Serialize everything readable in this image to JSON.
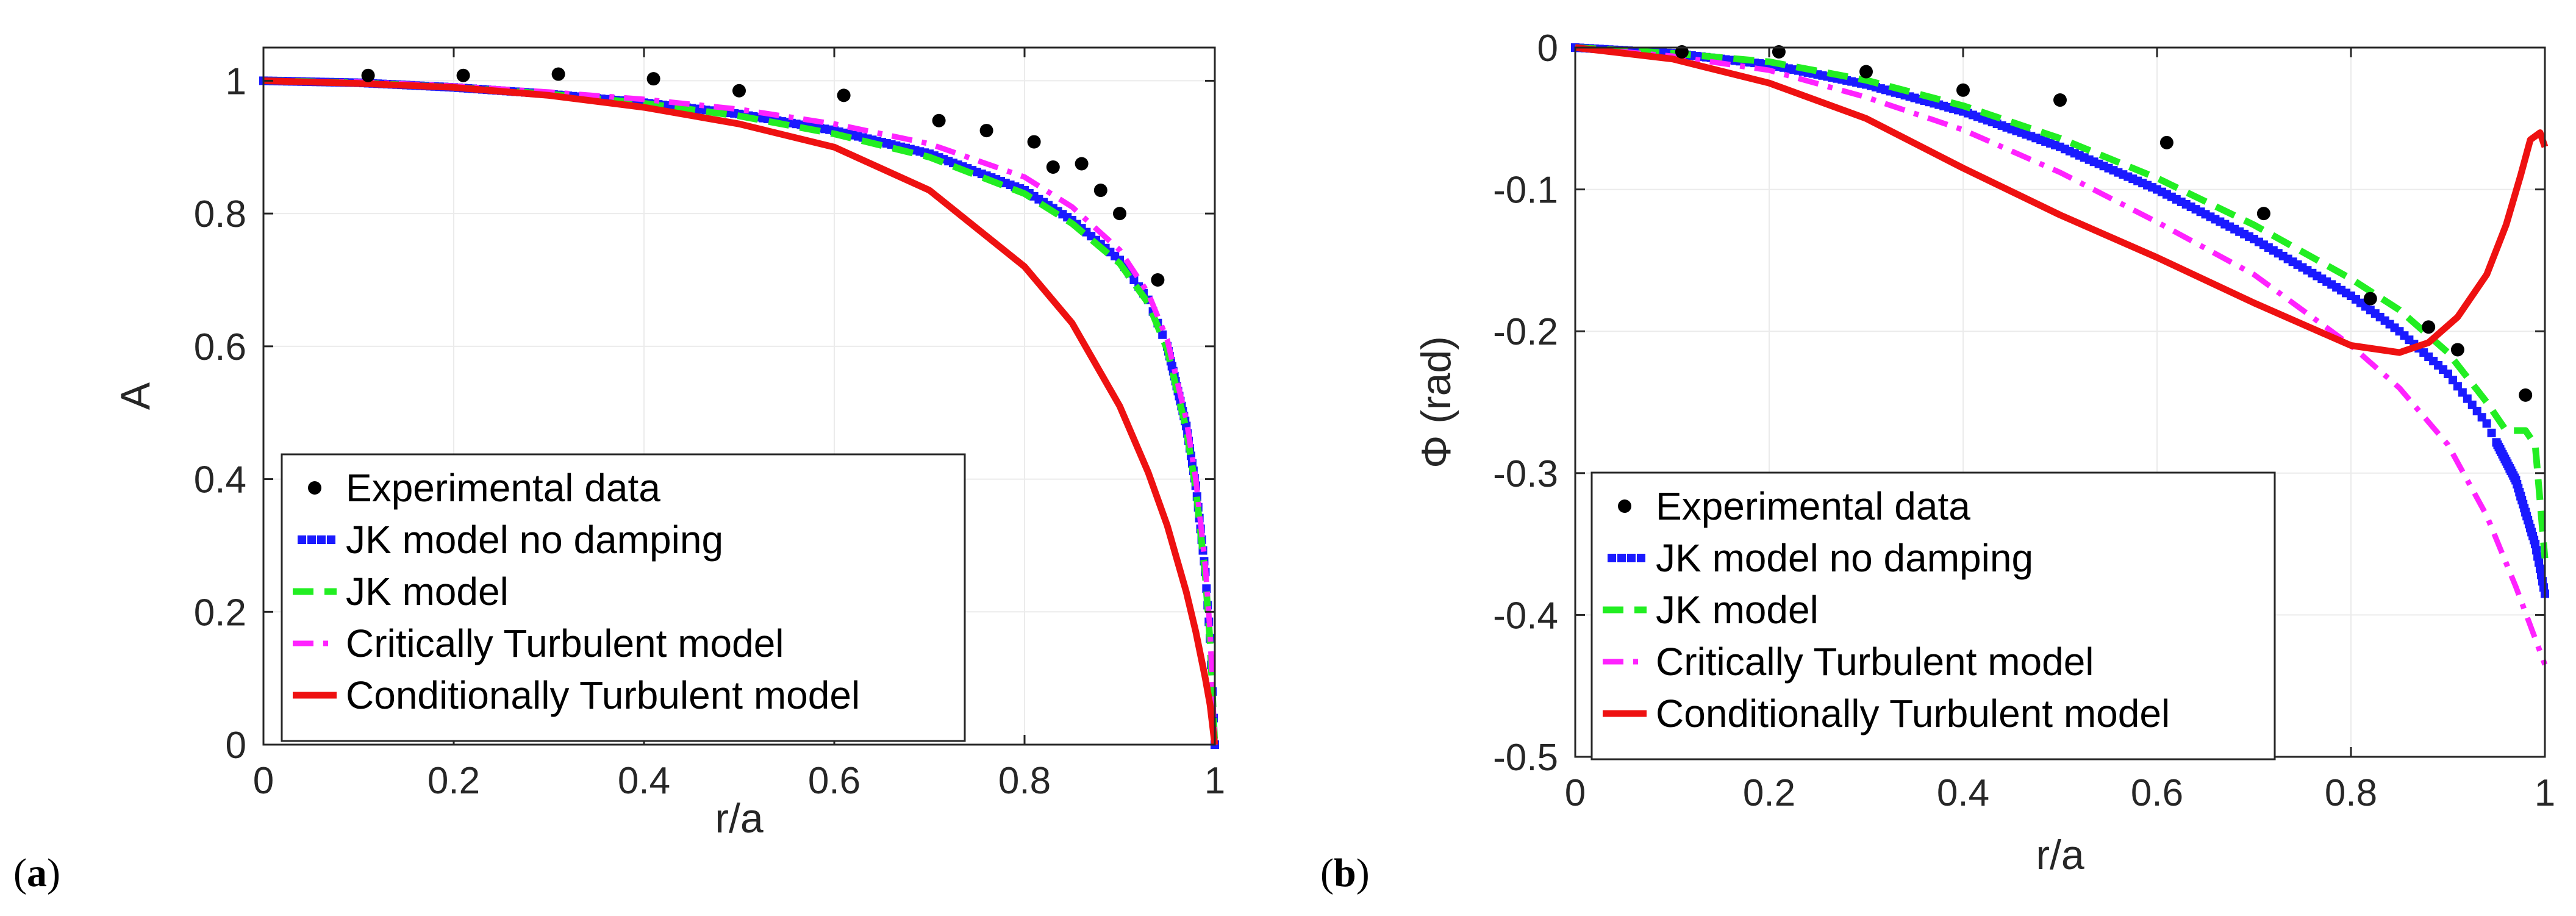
{
  "colors": {
    "experimental": "#000000",
    "jk_no_damping": "#1a1aff",
    "jk_model": "#22ee22",
    "critically": "#ff22ff",
    "conditionally": "#ee1111",
    "axis": "#262626",
    "grid": "#ebebeb"
  },
  "legend_entries": [
    {
      "key": "experimental",
      "label": "Experimental data"
    },
    {
      "key": "jk_no_damping",
      "label": "JK model no damping"
    },
    {
      "key": "jk_model",
      "label": "JK model"
    },
    {
      "key": "critically",
      "label": "Critically Turbulent model"
    },
    {
      "key": "conditionally",
      "label": "Conditionally Turbulent model"
    }
  ],
  "chart_data": [
    {
      "type": "line",
      "panel_label_prefix": "(",
      "panel_label": "a",
      "panel_label_suffix": ")",
      "xlabel": "r/a",
      "ylabel": "A",
      "xlim": [
        0,
        1
      ],
      "ylim": [
        0,
        1.05
      ],
      "xticks": [
        0,
        0.2,
        0.4,
        0.6,
        0.8,
        1
      ],
      "xtick_labels": [
        "0",
        "0.2",
        "0.4",
        "0.6",
        "0.8",
        "1"
      ],
      "yticks": [
        0,
        0.2,
        0.4,
        0.6,
        0.8,
        1
      ],
      "ytick_labels": [
        "0",
        "0.2",
        "0.4",
        "0.6",
        "0.8",
        "1"
      ],
      "grid": true,
      "legend_position": "bottom-left",
      "experimental": {
        "x": [
          0.11,
          0.21,
          0.31,
          0.41,
          0.5,
          0.61,
          0.71,
          0.76,
          0.81,
          0.83,
          0.86,
          0.88,
          0.9,
          0.94
        ],
        "y": [
          1.008,
          1.008,
          1.01,
          1.003,
          0.985,
          0.978,
          0.94,
          0.925,
          0.908,
          0.87,
          0.875,
          0.835,
          0.8,
          0.7
        ]
      },
      "series": [
        {
          "key": "jk_no_damping",
          "style": "square-dense",
          "x": [
            0,
            0.1,
            0.2,
            0.3,
            0.4,
            0.5,
            0.6,
            0.7,
            0.8,
            0.85,
            0.9,
            0.93,
            0.95,
            0.97,
            0.98,
            0.99,
            0.995,
            1.0
          ],
          "y": [
            1.0,
            0.997,
            0.99,
            0.98,
            0.967,
            0.95,
            0.925,
            0.89,
            0.835,
            0.79,
            0.73,
            0.67,
            0.6,
            0.48,
            0.39,
            0.26,
            0.16,
            0.0
          ]
        },
        {
          "key": "jk_model",
          "style": "dash",
          "x": [
            0,
            0.1,
            0.2,
            0.3,
            0.4,
            0.5,
            0.6,
            0.7,
            0.8,
            0.85,
            0.9,
            0.93,
            0.95,
            0.97,
            0.98,
            0.99,
            0.995,
            1.0
          ],
          "y": [
            1.0,
            0.997,
            0.99,
            0.98,
            0.966,
            0.947,
            0.92,
            0.885,
            0.83,
            0.785,
            0.725,
            0.665,
            0.595,
            0.475,
            0.385,
            0.255,
            0.155,
            0.0
          ]
        },
        {
          "key": "critically",
          "style": "dashdot",
          "x": [
            0,
            0.1,
            0.2,
            0.3,
            0.4,
            0.5,
            0.6,
            0.7,
            0.8,
            0.85,
            0.9,
            0.93,
            0.95,
            0.97,
            0.98,
            0.99,
            0.995,
            1.0
          ],
          "y": [
            1.0,
            0.998,
            0.992,
            0.983,
            0.972,
            0.957,
            0.935,
            0.905,
            0.855,
            0.81,
            0.745,
            0.68,
            0.61,
            0.49,
            0.4,
            0.27,
            0.17,
            0.0
          ]
        },
        {
          "key": "conditionally",
          "style": "solid",
          "x": [
            0,
            0.1,
            0.2,
            0.3,
            0.4,
            0.5,
            0.6,
            0.7,
            0.8,
            0.85,
            0.9,
            0.93,
            0.95,
            0.97,
            0.98,
            0.99,
            0.995,
            1.0
          ],
          "y": [
            1.0,
            0.996,
            0.99,
            0.978,
            0.96,
            0.935,
            0.9,
            0.835,
            0.72,
            0.635,
            0.51,
            0.41,
            0.33,
            0.23,
            0.17,
            0.1,
            0.06,
            0.0
          ]
        }
      ]
    },
    {
      "type": "line",
      "panel_label_prefix": "(",
      "panel_label": "b",
      "panel_label_suffix": ")",
      "xlabel": "r/a",
      "ylabel": "Φ (rad)",
      "xlim": [
        0,
        1
      ],
      "ylim": [
        -0.5,
        0
      ],
      "xticks": [
        0,
        0.2,
        0.4,
        0.6,
        0.8,
        1
      ],
      "xtick_labels": [
        "0",
        "0.2",
        "0.4",
        "0.6",
        "0.8",
        "1"
      ],
      "yticks": [
        0,
        -0.1,
        -0.2,
        -0.3,
        -0.4,
        -0.5
      ],
      "ytick_labels": [
        "0",
        "-0.1",
        "-0.2",
        "-0.3",
        "-0.4",
        "-0.5"
      ],
      "grid": true,
      "legend_position": "bottom-left",
      "experimental": {
        "x": [
          0.11,
          0.21,
          0.3,
          0.4,
          0.5,
          0.61,
          0.71,
          0.82,
          0.88,
          0.91,
          0.98
        ],
        "y": [
          -0.003,
          -0.003,
          -0.017,
          -0.03,
          -0.037,
          -0.067,
          -0.117,
          -0.177,
          -0.197,
          -0.213,
          -0.245
        ]
      },
      "series": [
        {
          "key": "jk_no_damping",
          "style": "square-dense",
          "x": [
            0,
            0.1,
            0.2,
            0.3,
            0.4,
            0.5,
            0.6,
            0.7,
            0.8,
            0.85,
            0.9,
            0.94,
            0.97,
            0.99,
            1.0
          ],
          "y": [
            0,
            -0.004,
            -0.012,
            -0.026,
            -0.045,
            -0.07,
            -0.1,
            -0.135,
            -0.175,
            -0.2,
            -0.23,
            -0.265,
            -0.305,
            -0.35,
            -0.385
          ]
        },
        {
          "key": "jk_model",
          "style": "dash",
          "x": [
            0,
            0.1,
            0.2,
            0.3,
            0.4,
            0.5,
            0.6,
            0.7,
            0.8,
            0.85,
            0.9,
            0.94,
            0.96,
            0.98,
            0.99,
            0.995,
            1.0
          ],
          "y": [
            0,
            -0.004,
            -0.01,
            -0.023,
            -0.041,
            -0.064,
            -0.092,
            -0.125,
            -0.163,
            -0.185,
            -0.215,
            -0.25,
            -0.27,
            -0.27,
            -0.28,
            -0.32,
            -0.36
          ]
        },
        {
          "key": "critically",
          "style": "dashdot",
          "x": [
            0,
            0.1,
            0.2,
            0.3,
            0.4,
            0.5,
            0.6,
            0.7,
            0.8,
            0.85,
            0.9,
            0.94,
            0.97,
            1.0
          ],
          "y": [
            0,
            -0.006,
            -0.016,
            -0.035,
            -0.058,
            -0.088,
            -0.123,
            -0.16,
            -0.21,
            -0.24,
            -0.28,
            -0.33,
            -0.38,
            -0.435
          ]
        },
        {
          "key": "conditionally",
          "style": "solid",
          "x": [
            0,
            0.1,
            0.2,
            0.3,
            0.4,
            0.5,
            0.6,
            0.7,
            0.8,
            0.85,
            0.88,
            0.91,
            0.94,
            0.96,
            0.975,
            0.985,
            0.995,
            1.0
          ],
          "y": [
            0,
            -0.008,
            -0.025,
            -0.05,
            -0.085,
            -0.118,
            -0.148,
            -0.18,
            -0.21,
            -0.215,
            -0.208,
            -0.19,
            -0.16,
            -0.125,
            -0.09,
            -0.065,
            -0.06,
            -0.07
          ]
        }
      ]
    }
  ]
}
